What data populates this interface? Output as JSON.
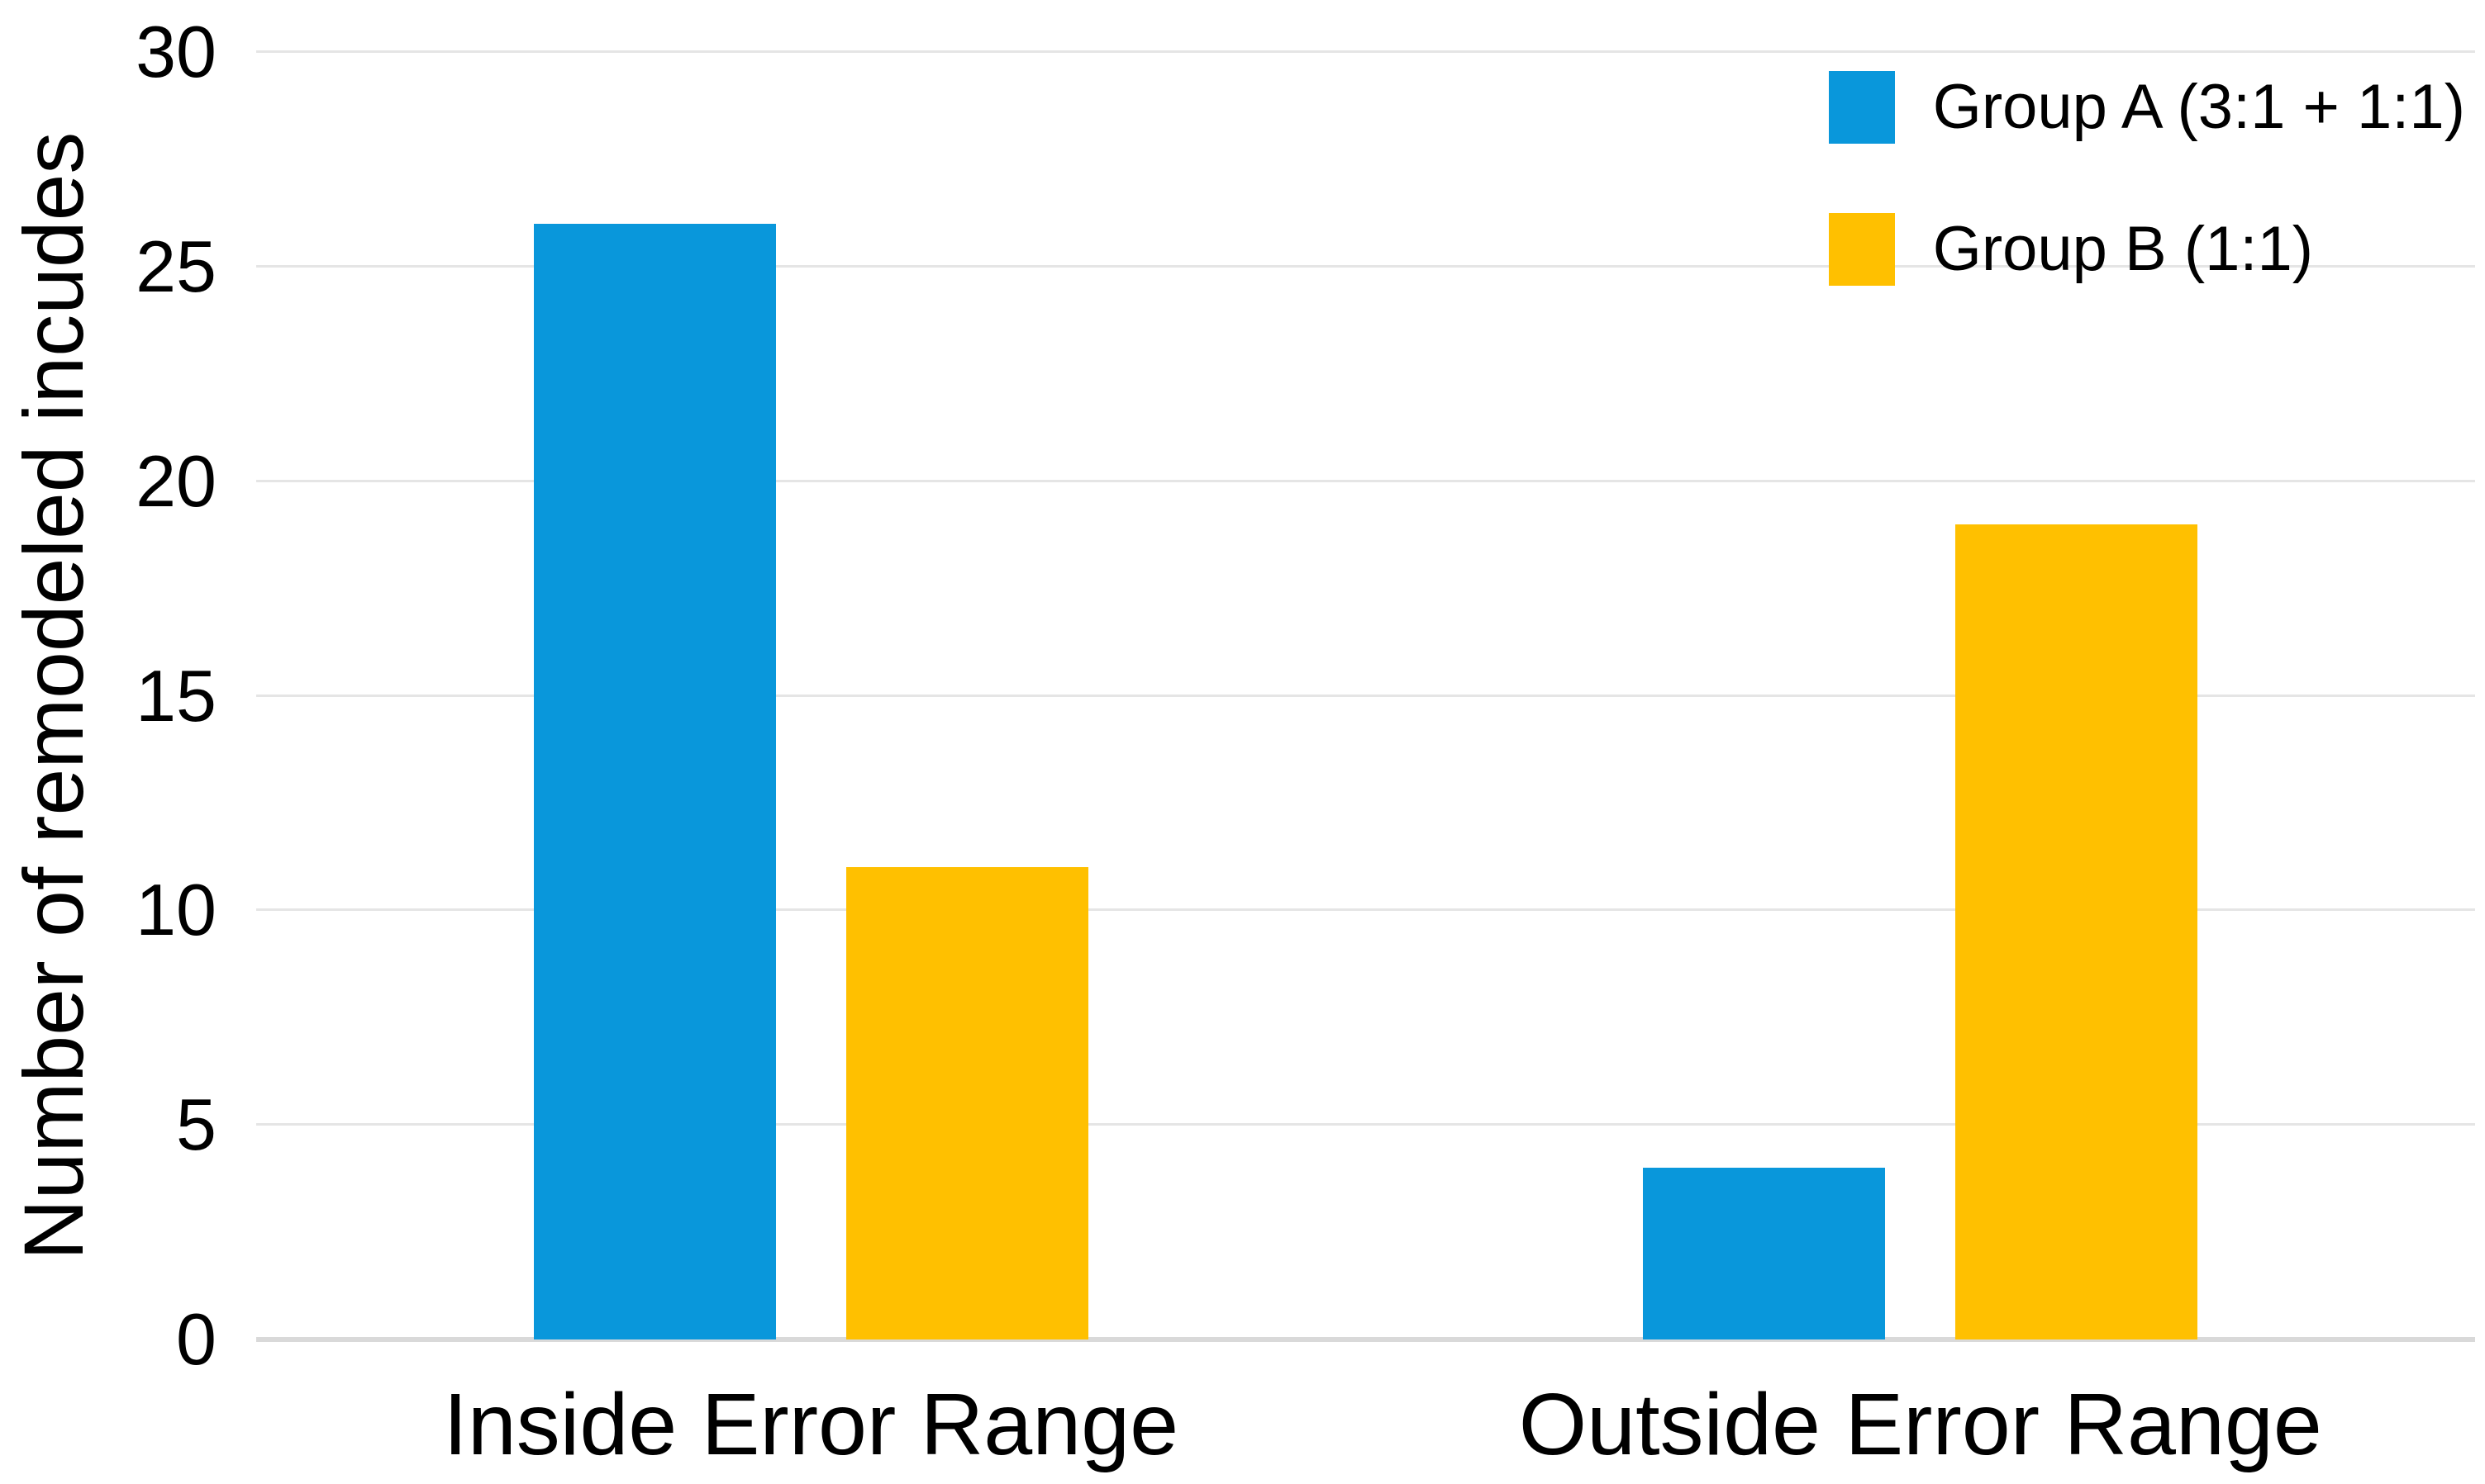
{
  "chart_data": {
    "type": "bar",
    "title": "",
    "xlabel": "",
    "ylabel": "Number of remodeled incudes",
    "categories": [
      "Inside Error Range",
      "Outside Error Range"
    ],
    "series": [
      {
        "name": "Group A (3:1 + 1:1)",
        "color": "#0997DB",
        "values": [
          26,
          4
        ]
      },
      {
        "name": "Group B (1:1)",
        "color": "#FFC000",
        "values": [
          11,
          19
        ]
      }
    ],
    "ylim": [
      0,
      30
    ],
    "yticks": [
      0,
      5,
      10,
      15,
      20,
      25,
      30
    ],
    "grid": "horizontal",
    "legend_position": "top-right",
    "gridline_color": "#E5E5E5",
    "baseline_color": "#D9D9D9",
    "text_color": "#000000",
    "background_color": "#FFFFFF"
  }
}
